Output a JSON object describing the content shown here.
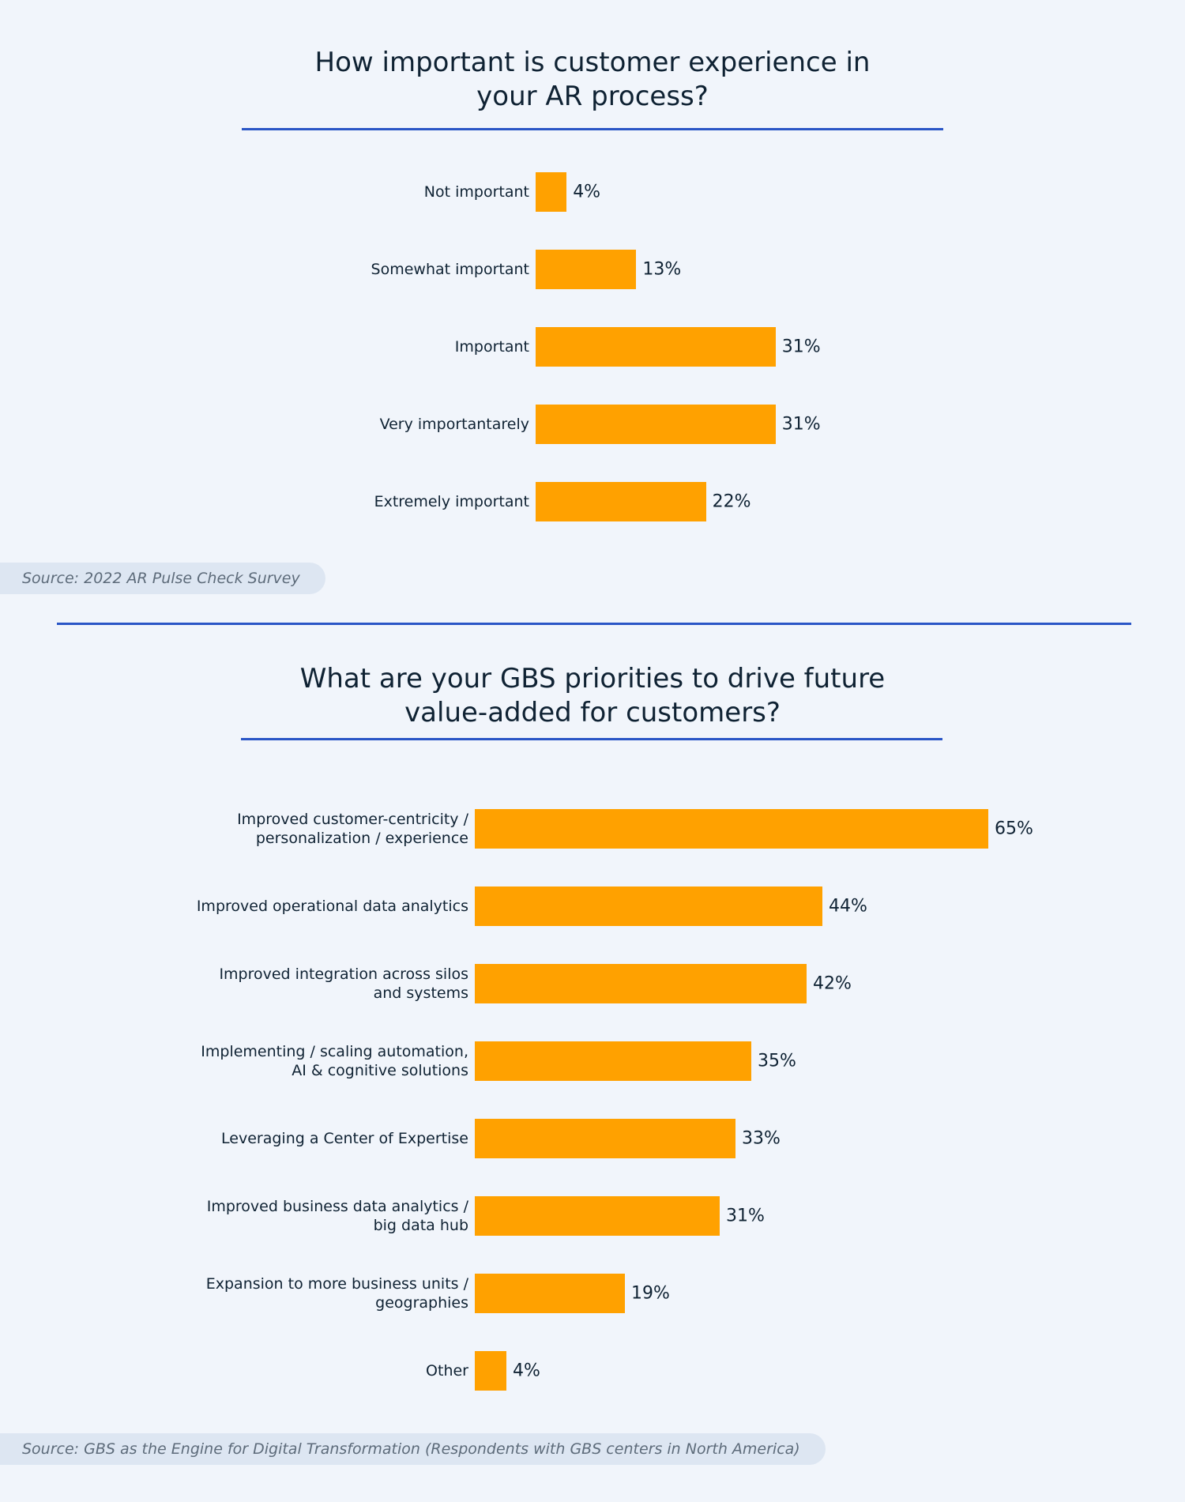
{
  "chart_data": [
    {
      "type": "bar",
      "orientation": "horizontal",
      "title_lines": [
        "How important is customer experience in",
        "your AR process?"
      ],
      "categories": [
        [
          "Not important"
        ],
        [
          "Somewhat important"
        ],
        [
          "Important"
        ],
        [
          "Very importantarely"
        ],
        [
          "Extremely important"
        ]
      ],
      "values": [
        4,
        13,
        31,
        31,
        22
      ],
      "value_suffix": "%",
      "bar_color": "#ffa100",
      "source": "Source: 2022 AR Pulse Check Survey"
    },
    {
      "type": "bar",
      "orientation": "horizontal",
      "title_lines": [
        "What are your GBS priorities to drive future",
        "value-added for customers?"
      ],
      "categories": [
        [
          "Improved customer-centricity /",
          "personalization / experience"
        ],
        [
          "Improved operational data analytics"
        ],
        [
          "Improved integration across silos",
          "and systems"
        ],
        [
          "Implementing / scaling automation,",
          "AI & cognitive solutions"
        ],
        [
          "Leveraging a Center of Expertise"
        ],
        [
          "Improved business data analytics /",
          "big data hub"
        ],
        [
          "Expansion to more business units /",
          "geographies"
        ],
        [
          "Other"
        ]
      ],
      "values": [
        65,
        44,
        42,
        35,
        33,
        31,
        19,
        4
      ],
      "value_suffix": "%",
      "bar_color": "#ffa100",
      "source": "Source: GBS as the Engine for Digital Transformation (Respondents with GBS centers in North America)"
    }
  ],
  "colors": {
    "background": "#f1f5fb",
    "rule": "#2a56c6",
    "text": "#0f2233",
    "source_pill": "#dde6f2"
  }
}
